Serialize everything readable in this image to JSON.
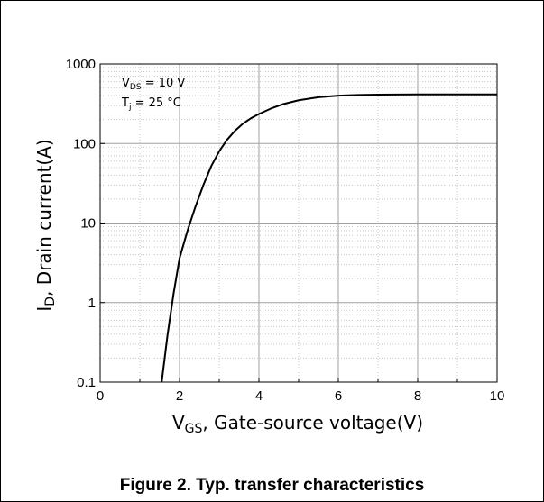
{
  "caption": "Figure 2. Typ. transfer characteristics",
  "chart_data": {
    "type": "line",
    "xlabel": {
      "main": "V",
      "sub": "GS",
      "rest": ", Gate-source voltage(V)"
    },
    "ylabel": {
      "main": "I",
      "sub": "D",
      "rest": ", Drain current(A)"
    },
    "xlim": [
      0,
      10
    ],
    "ylim": [
      0.1,
      1000
    ],
    "yscale": "log",
    "grid": true,
    "x_ticks": [
      "0",
      "2",
      "4",
      "6",
      "8",
      "10"
    ],
    "y_ticks": [
      "0.1",
      "1",
      "10",
      "100",
      "1000"
    ],
    "annotations": [
      {
        "main": "V",
        "sub": "DS",
        "rest": " = 10 V"
      },
      {
        "main": "T",
        "sub": "j",
        "rest": " = 25 °C"
      }
    ],
    "series": [
      {
        "color": "#000000",
        "x": [
          1.55,
          1.7,
          1.85,
          2.0,
          2.2,
          2.4,
          2.6,
          2.8,
          3.0,
          3.2,
          3.4,
          3.6,
          3.8,
          4.0,
          4.3,
          4.6,
          5.0,
          5.5,
          6.0,
          6.5,
          7.0,
          8.0,
          9.0,
          10.0
        ],
        "y": [
          0.1,
          0.4,
          1.3,
          3.6,
          8,
          16,
          30,
          52,
          80,
          112,
          145,
          178,
          208,
          235,
          275,
          312,
          350,
          382,
          400,
          408,
          412,
          414,
          415,
          415
        ]
      }
    ]
  }
}
